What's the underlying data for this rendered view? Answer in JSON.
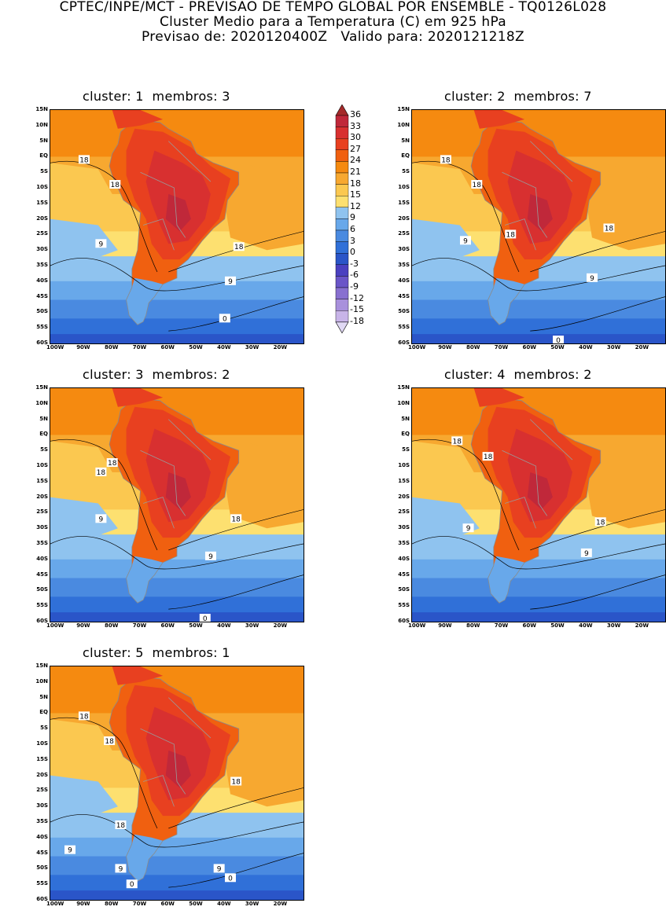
{
  "title": {
    "line1": "CPTEC/INPE/MCT - PREVISAO DE TEMPO GLOBAL POR ENSEMBLE - TQ0126L028",
    "line2": "Cluster Medio para a Temperatura (C) em 925 hPa",
    "line3": "Previsao de: 2020120400Z   Valido para: 2020121218Z"
  },
  "panels": [
    {
      "title": "cluster: 1  membros: 3",
      "contour_labels": [
        "18",
        "18",
        "9",
        "18",
        "9",
        "0"
      ]
    },
    {
      "title": "cluster: 2  membros: 7",
      "contour_labels": [
        "18",
        "18",
        "9",
        "18",
        "18",
        "9",
        "0"
      ]
    },
    {
      "title": "cluster: 3  membros: 2",
      "contour_labels": [
        "18",
        "18",
        "9",
        "18",
        "9",
        "0"
      ]
    },
    {
      "title": "cluster: 4  membros: 2",
      "contour_labels": [
        "18",
        "18",
        "9",
        "18",
        "9"
      ]
    },
    {
      "title": "cluster: 5  membros: 1",
      "contour_labels": [
        "18",
        "18",
        "18",
        "18",
        "9",
        "9",
        "9",
        "0",
        "0"
      ]
    }
  ],
  "lat_ticks": [
    "15N",
    "10N",
    "5N",
    "EQ",
    "5S",
    "10S",
    "15S",
    "20S",
    "25S",
    "30S",
    "35S",
    "40S",
    "45S",
    "50S",
    "55S",
    "60S"
  ],
  "lon_ticks": [
    "100W",
    "90W",
    "80W",
    "70W",
    "60W",
    "50W",
    "40W",
    "30W",
    "20W"
  ],
  "colorbar": {
    "labels": [
      "36",
      "33",
      "30",
      "27",
      "24",
      "21",
      "18",
      "15",
      "12",
      "9",
      "6",
      "3",
      "0",
      "-3",
      "-6",
      "-9",
      "-12",
      "-15",
      "-18"
    ],
    "colors": [
      "#a52a2a",
      "#c0283a",
      "#d83030",
      "#e84020",
      "#f06010",
      "#f58a10",
      "#f7a830",
      "#fbc850",
      "#fde070",
      "#8fc3ef",
      "#68a8ea",
      "#4a8ae0",
      "#3070d8",
      "#2a55c8",
      "#4a40c0",
      "#6a55c8",
      "#8870d0",
      "#a890dc",
      "#c8b4e8",
      "#e0d8f4"
    ]
  }
}
